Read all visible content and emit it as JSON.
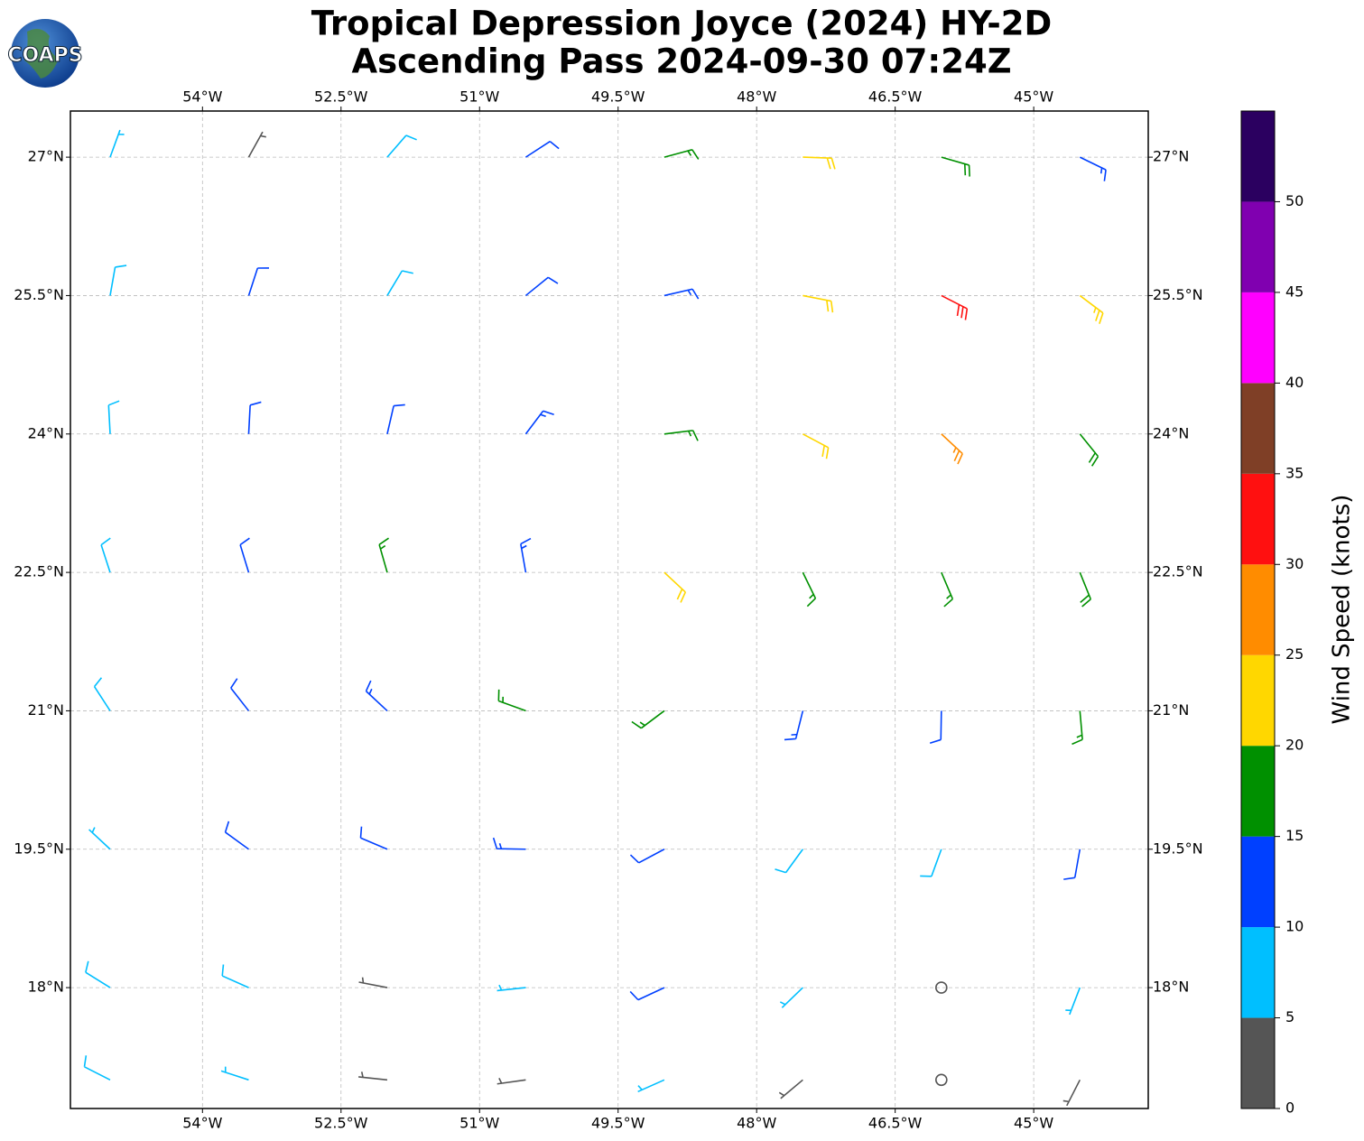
{
  "chart_data": {
    "type": "barbs",
    "title": "Tropical Depression Joyce (2024) HY-2D",
    "subtitle": "Ascending Pass 2024-09-30 07:24Z",
    "logo": "COAPS",
    "xlim": [
      -55.43,
      -43.76
    ],
    "ylim": [
      16.69,
      27.5
    ],
    "xticks": [
      {
        "value": -54,
        "label": "54°W"
      },
      {
        "value": -52.5,
        "label": "52.5°W"
      },
      {
        "value": -51,
        "label": "51°W"
      },
      {
        "value": -49.5,
        "label": "49.5°W"
      },
      {
        "value": -48,
        "label": "48°W"
      },
      {
        "value": -46.5,
        "label": "46.5°W"
      },
      {
        "value": -45,
        "label": "45°W"
      }
    ],
    "yticks": [
      {
        "value": 18,
        "label": "18°N"
      },
      {
        "value": 19.5,
        "label": "19.5°N"
      },
      {
        "value": 21,
        "label": "21°N"
      },
      {
        "value": 22.5,
        "label": "22.5°N"
      },
      {
        "value": 24,
        "label": "24°N"
      },
      {
        "value": 25.5,
        "label": "25.5°N"
      },
      {
        "value": 27,
        "label": "27°N"
      }
    ],
    "grid": true,
    "barbs": {
      "lons": [
        -55,
        -53.5,
        -52,
        -50.5,
        -49,
        -47.5,
        -46,
        -44.5
      ],
      "lats": [
        27,
        25.5,
        24,
        22.5,
        21,
        19.5,
        18,
        17
      ],
      "speed": [
        [
          7,
          4,
          8,
          12,
          17,
          21,
          18,
          13
        ],
        [
          9,
          11,
          8,
          12,
          14,
          22,
          31,
          24
        ],
        [
          8,
          12,
          10,
          13,
          17,
          20,
          26,
          18
        ],
        [
          9,
          12,
          16,
          13,
          20,
          17,
          16,
          18
        ],
        [
          8,
          11,
          13,
          17,
          15,
          13,
          12,
          17
        ],
        [
          7,
          10,
          11,
          13,
          12,
          9,
          8,
          12
        ],
        [
          9,
          9,
          4,
          7,
          12,
          6,
          2,
          7
        ],
        [
          8,
          6,
          3,
          4,
          7,
          3,
          0,
          4
        ]
      ],
      "direction": [
        [
          20,
          29,
          41,
          57,
          75,
          92,
          106,
          116
        ],
        [
          10,
          18,
          31,
          51,
          77,
          101,
          117,
          127
        ],
        [
          357,
          3,
          13,
          37,
          83,
          118,
          133,
          141
        ],
        [
          342,
          343,
          344,
          350,
          133,
          154,
          157,
          158
        ],
        [
          327,
          322,
          313,
          290,
          233,
          194,
          181,
          175
        ],
        [
          313,
          306,
          293,
          271,
          242,
          216,
          200,
          190
        ],
        [
          302,
          294,
          281,
          264,
          245,
          226,
          212,
          201
        ],
        [
          297,
          288,
          276,
          262,
          246,
          230,
          217,
          207
        ]
      ]
    },
    "colorbar": {
      "label": "Wind Speed (knots)",
      "bounds": [
        0,
        5,
        10,
        15,
        20,
        25,
        30,
        35,
        40,
        45,
        50,
        55
      ],
      "colors": [
        "#555555",
        "#00bfff",
        "#0040ff",
        "#009000",
        "#ffd700",
        "#ff8c00",
        "#ff1010",
        "#7f3f26",
        "#ff00ff",
        "#8000b0",
        "#2b0060"
      ],
      "ticks": [
        0,
        5,
        10,
        15,
        20,
        25,
        30,
        35,
        40,
        45,
        50
      ]
    }
  }
}
